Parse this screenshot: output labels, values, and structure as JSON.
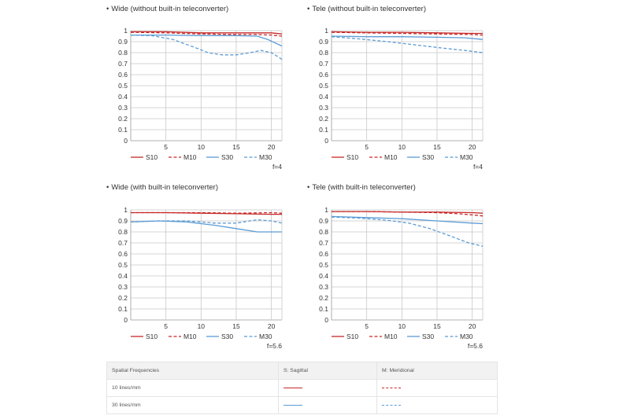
{
  "chart_data": [
    {
      "type": "line",
      "title": "Wide (without built-in teleconverter)",
      "aperture": "f=4",
      "xlim": [
        0,
        21.5
      ],
      "ylim": [
        0,
        1
      ],
      "xticks": [
        "5",
        "10",
        "15",
        "20"
      ],
      "yticks": [
        "0",
        "0.1",
        "0.2",
        "0.3",
        "0.4",
        "0.5",
        "0.6",
        "0.7",
        "0.8",
        "0.9",
        "1"
      ],
      "series": [
        {
          "name": "S10",
          "color": "#c62828",
          "dash": false,
          "x": [
            0,
            5,
            10,
            15,
            18,
            20,
            21.5
          ],
          "y": [
            0.99,
            0.99,
            0.98,
            0.98,
            0.98,
            0.98,
            0.97
          ]
        },
        {
          "name": "M10",
          "color": "#c62828",
          "dash": true,
          "x": [
            0,
            5,
            10,
            15,
            18,
            20,
            21.5
          ],
          "y": [
            0.985,
            0.98,
            0.97,
            0.965,
            0.965,
            0.96,
            0.95
          ]
        },
        {
          "name": "S30",
          "color": "#5b9bd5",
          "dash": false,
          "x": [
            0,
            5,
            10,
            15,
            18,
            19.5,
            21.5
          ],
          "y": [
            0.96,
            0.96,
            0.955,
            0.955,
            0.95,
            0.92,
            0.86
          ]
        },
        {
          "name": "M30",
          "color": "#5b9bd5",
          "dash": true,
          "x": [
            0,
            3,
            6,
            9,
            11,
            13,
            15,
            17,
            18.5,
            20,
            21.5
          ],
          "y": [
            0.96,
            0.955,
            0.92,
            0.85,
            0.8,
            0.78,
            0.78,
            0.8,
            0.82,
            0.8,
            0.74
          ]
        }
      ]
    },
    {
      "type": "line",
      "title": "Tele (without built-in teleconverter)",
      "aperture": "f=4",
      "xlim": [
        0,
        21.5
      ],
      "ylim": [
        0,
        1
      ],
      "xticks": [
        "5",
        "10",
        "15",
        "20"
      ],
      "yticks": [
        "0",
        "0.1",
        "0.2",
        "0.3",
        "0.4",
        "0.5",
        "0.6",
        "0.7",
        "0.8",
        "0.9",
        "1"
      ],
      "series": [
        {
          "name": "S10",
          "color": "#c62828",
          "dash": false,
          "x": [
            0,
            5,
            10,
            15,
            20,
            21.5
          ],
          "y": [
            0.99,
            0.985,
            0.985,
            0.98,
            0.975,
            0.975
          ]
        },
        {
          "name": "M10",
          "color": "#c62828",
          "dash": true,
          "x": [
            0,
            5,
            10,
            15,
            20,
            21.5
          ],
          "y": [
            0.985,
            0.98,
            0.975,
            0.97,
            0.965,
            0.96
          ]
        },
        {
          "name": "S30",
          "color": "#5b9bd5",
          "dash": false,
          "x": [
            0,
            5,
            10,
            15,
            19,
            21.5
          ],
          "y": [
            0.95,
            0.945,
            0.945,
            0.94,
            0.935,
            0.92
          ]
        },
        {
          "name": "M30",
          "color": "#5b9bd5",
          "dash": true,
          "x": [
            0,
            4,
            8,
            12,
            16,
            19,
            21.5
          ],
          "y": [
            0.945,
            0.925,
            0.9,
            0.87,
            0.84,
            0.82,
            0.8
          ]
        }
      ]
    },
    {
      "type": "line",
      "title": "Wide (with built-in teleconverter)",
      "aperture": "f=5.6",
      "xlim": [
        0,
        21.5
      ],
      "ylim": [
        0,
        1
      ],
      "xticks": [
        "5",
        "10",
        "15",
        "20"
      ],
      "yticks": [
        "0",
        "0.1",
        "0.2",
        "0.3",
        "0.4",
        "0.5",
        "0.6",
        "0.7",
        "0.8",
        "0.9",
        "1"
      ],
      "series": [
        {
          "name": "S10",
          "color": "#c62828",
          "dash": false,
          "x": [
            0,
            5,
            10,
            15,
            20,
            21.5
          ],
          "y": [
            0.975,
            0.975,
            0.97,
            0.965,
            0.96,
            0.96
          ]
        },
        {
          "name": "M10",
          "color": "#c62828",
          "dash": true,
          "x": [
            0,
            5,
            10,
            15,
            20,
            21.5
          ],
          "y": [
            0.975,
            0.975,
            0.975,
            0.97,
            0.975,
            0.97
          ]
        },
        {
          "name": "S30",
          "color": "#5b9bd5",
          "dash": false,
          "x": [
            0,
            4,
            8,
            12,
            15,
            18,
            21.5
          ],
          "y": [
            0.89,
            0.9,
            0.89,
            0.86,
            0.83,
            0.8,
            0.8
          ]
        },
        {
          "name": "M30",
          "color": "#5b9bd5",
          "dash": true,
          "x": [
            0,
            4,
            8,
            12,
            15,
            18,
            20,
            21.5
          ],
          "y": [
            0.89,
            0.9,
            0.9,
            0.88,
            0.88,
            0.91,
            0.9,
            0.88
          ]
        }
      ]
    },
    {
      "type": "line",
      "title": "Tele (with built-in teleconverter)",
      "aperture": "f=5.6",
      "xlim": [
        0,
        21.5
      ],
      "ylim": [
        0,
        1
      ],
      "xticks": [
        "5",
        "10",
        "15",
        "20"
      ],
      "yticks": [
        "0",
        "0.1",
        "0.2",
        "0.3",
        "0.4",
        "0.5",
        "0.6",
        "0.7",
        "0.8",
        "0.9",
        "1"
      ],
      "series": [
        {
          "name": "S10",
          "color": "#c62828",
          "dash": false,
          "x": [
            0,
            5,
            10,
            15,
            20,
            21.5
          ],
          "y": [
            0.985,
            0.985,
            0.98,
            0.98,
            0.975,
            0.97
          ]
        },
        {
          "name": "M10",
          "color": "#c62828",
          "dash": true,
          "x": [
            0,
            5,
            10,
            15,
            18,
            20,
            21.5
          ],
          "y": [
            0.985,
            0.985,
            0.98,
            0.975,
            0.965,
            0.955,
            0.945
          ]
        },
        {
          "name": "S30",
          "color": "#5b9bd5",
          "dash": false,
          "x": [
            0,
            5,
            10,
            15,
            20,
            21.5
          ],
          "y": [
            0.94,
            0.93,
            0.92,
            0.9,
            0.88,
            0.875
          ]
        },
        {
          "name": "M30",
          "color": "#5b9bd5",
          "dash": true,
          "x": [
            0,
            4,
            8,
            11,
            14,
            17,
            19.5,
            21.5
          ],
          "y": [
            0.935,
            0.925,
            0.905,
            0.88,
            0.83,
            0.76,
            0.7,
            0.67
          ]
        }
      ]
    }
  ],
  "legend_table": {
    "header": [
      "Spatial Frequencies",
      "S: Sagittal",
      "M: Meridional"
    ],
    "rows": [
      {
        "label": "10 lines/mm",
        "color": "#c62828"
      },
      {
        "label": "30 lines/mm",
        "color": "#5b9bd5"
      }
    ]
  },
  "colors": {
    "red": "#c62828",
    "blue": "#5b9bd5",
    "grid": "#c8c8c8"
  }
}
